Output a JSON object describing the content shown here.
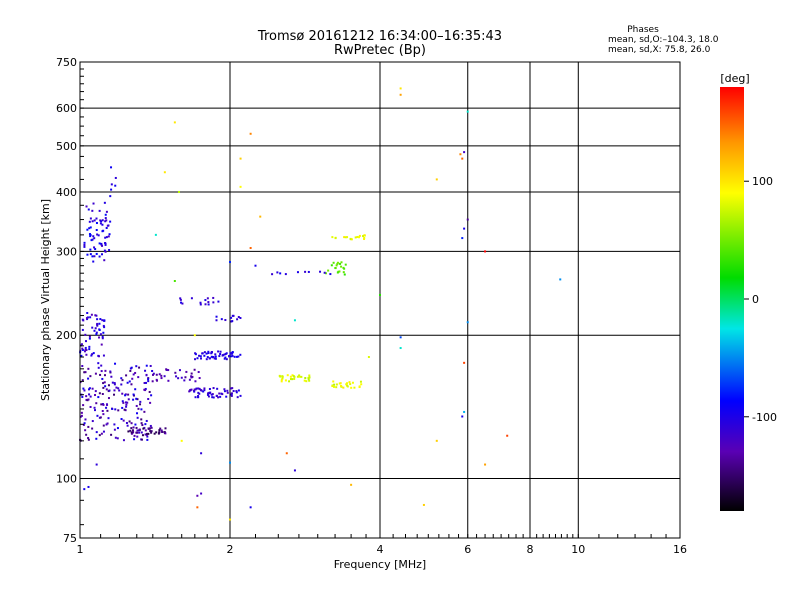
{
  "chart_data": {
    "type": "scatter",
    "title": "Tromsø 20161212 16:34:00–16:35:43",
    "subtitle": "RwPretec (Bp)",
    "xlabel": "Frequency [MHz]",
    "ylabel": "Stationary phase Virtual Height [km]",
    "x_scale": "log",
    "y_scale": "log",
    "xlim": [
      1,
      16
    ],
    "ylim": [
      75,
      750
    ],
    "x_ticks": [
      1,
      2,
      4,
      6,
      8,
      10,
      16
    ],
    "x_tick_labels": [
      "1",
      "2",
      "4",
      "6",
      "8",
      "10",
      "16"
    ],
    "y_ticks": [
      75,
      100,
      200,
      300,
      400,
      500,
      600,
      750
    ],
    "y_tick_labels": [
      "75",
      "100",
      "200",
      "300",
      "400",
      "500",
      "600",
      "750"
    ],
    "grid": true,
    "stats": {
      "header": "Phases",
      "line_o": "mean, sd,O:–104.3, 18.0",
      "line_x": "mean, sd,X:  75.8, 26.0"
    },
    "colorbar": {
      "label": "[deg]",
      "range": [
        -180,
        180
      ],
      "ticks": [
        100,
        0,
        -100
      ],
      "tick_labels": [
        "100",
        "0",
        "-100"
      ]
    },
    "clusters": [
      {
        "f": [
          1.02,
          1.15
        ],
        "h": [
          285,
          380
        ],
        "phase": [
          -125,
          -85
        ],
        "n": 70
      },
      {
        "f": [
          1.0,
          1.12
        ],
        "h": [
          180,
          225
        ],
        "phase": [
          -130,
          -90
        ],
        "n": 60
      },
      {
        "f": [
          1.0,
          1.4
        ],
        "h": [
          120,
          175
        ],
        "phase": [
          -150,
          -95
        ],
        "n": 200
      },
      {
        "f": [
          1.25,
          1.5
        ],
        "h": [
          123,
          128
        ],
        "phase": [
          -160,
          -130
        ],
        "n": 40
      },
      {
        "f": [
          1.4,
          1.75
        ],
        "h": [
          160,
          170
        ],
        "phase": [
          -140,
          -115
        ],
        "n": 30
      },
      {
        "f": [
          1.65,
          2.1
        ],
        "h": [
          148,
          155
        ],
        "phase": [
          -125,
          -100
        ],
        "n": 60
      },
      {
        "f": [
          1.7,
          2.1
        ],
        "h": [
          178,
          185
        ],
        "phase": [
          -115,
          -95
        ],
        "n": 55
      },
      {
        "f": [
          1.55,
          1.9
        ],
        "h": [
          232,
          240
        ],
        "phase": [
          -120,
          -100
        ],
        "n": 15
      },
      {
        "f": [
          1.85,
          2.1
        ],
        "h": [
          213,
          220
        ],
        "phase": [
          -115,
          -100
        ],
        "n": 12
      },
      {
        "f": [
          2.5,
          2.9
        ],
        "h": [
          160,
          165
        ],
        "phase": [
          70,
          95
        ],
        "n": 30
      },
      {
        "f": [
          3.2,
          3.7
        ],
        "h": [
          155,
          160
        ],
        "phase": [
          70,
          100
        ],
        "n": 25
      },
      {
        "f": [
          3.1,
          3.45
        ],
        "h": [
          268,
          285
        ],
        "phase": [
          30,
          55
        ],
        "n": 20
      },
      {
        "f": [
          3.2,
          3.8
        ],
        "h": [
          318,
          325
        ],
        "phase": [
          75,
          100
        ],
        "n": 18
      },
      {
        "f": [
          2.4,
          3.2
        ],
        "h": [
          268,
          272
        ],
        "phase": [
          -115,
          -95
        ],
        "n": 10
      },
      {
        "f": [
          1.15,
          1.2
        ],
        "h": [
          400,
          460
        ],
        "phase": [
          -110,
          -95
        ],
        "n": 4
      }
    ],
    "points": [
      {
        "x": 1.55,
        "y": 560,
        "phase": 100
      },
      {
        "x": 1.58,
        "y": 400,
        "phase": 70
      },
      {
        "x": 1.48,
        "y": 440,
        "phase": 100
      },
      {
        "x": 1.42,
        "y": 325,
        "phase": -20
      },
      {
        "x": 2.2,
        "y": 530,
        "phase": 140
      },
      {
        "x": 2.1,
        "y": 470,
        "phase": 110
      },
      {
        "x": 2.1,
        "y": 410,
        "phase": 90
      },
      {
        "x": 2.3,
        "y": 355,
        "phase": 120
      },
      {
        "x": 2.2,
        "y": 305,
        "phase": 150
      },
      {
        "x": 2.25,
        "y": 280,
        "phase": -100
      },
      {
        "x": 2.0,
        "y": 285,
        "phase": -80
      },
      {
        "x": 1.55,
        "y": 260,
        "phase": 40
      },
      {
        "x": 2.7,
        "y": 215,
        "phase": -20
      },
      {
        "x": 2.6,
        "y": 113,
        "phase": 150
      },
      {
        "x": 2.7,
        "y": 104,
        "phase": -110
      },
      {
        "x": 2.0,
        "y": 108,
        "phase": -50
      },
      {
        "x": 1.75,
        "y": 113,
        "phase": -110
      },
      {
        "x": 1.72,
        "y": 92,
        "phase": -130
      },
      {
        "x": 1.75,
        "y": 93,
        "phase": -120
      },
      {
        "x": 1.72,
        "y": 87,
        "phase": 150
      },
      {
        "x": 2.0,
        "y": 82,
        "phase": 100
      },
      {
        "x": 2.2,
        "y": 87,
        "phase": -100
      },
      {
        "x": 1.02,
        "y": 95,
        "phase": -100
      },
      {
        "x": 1.04,
        "y": 96,
        "phase": -100
      },
      {
        "x": 1.08,
        "y": 107,
        "phase": -110
      },
      {
        "x": 1.6,
        "y": 120,
        "phase": 90
      },
      {
        "x": 1.7,
        "y": 200,
        "phase": 90
      },
      {
        "x": 3.5,
        "y": 97,
        "phase": 120
      },
      {
        "x": 4.4,
        "y": 660,
        "phase": 100
      },
      {
        "x": 4.4,
        "y": 640,
        "phase": 130
      },
      {
        "x": 4.4,
        "y": 198,
        "phase": -70
      },
      {
        "x": 4.4,
        "y": 188,
        "phase": -20
      },
      {
        "x": 3.8,
        "y": 180,
        "phase": 80
      },
      {
        "x": 4.0,
        "y": 243,
        "phase": 30
      },
      {
        "x": 4.9,
        "y": 88,
        "phase": 110
      },
      {
        "x": 5.2,
        "y": 120,
        "phase": 110
      },
      {
        "x": 5.2,
        "y": 425,
        "phase": 110
      },
      {
        "x": 5.8,
        "y": 480,
        "phase": 140
      },
      {
        "x": 5.85,
        "y": 470,
        "phase": 150
      },
      {
        "x": 5.9,
        "y": 485,
        "phase": -120
      },
      {
        "x": 6.0,
        "y": 590,
        "phase": -20
      },
      {
        "x": 6.0,
        "y": 350,
        "phase": -140
      },
      {
        "x": 5.9,
        "y": 335,
        "phase": -100
      },
      {
        "x": 5.85,
        "y": 320,
        "phase": -80
      },
      {
        "x": 6.0,
        "y": 213,
        "phase": -50
      },
      {
        "x": 5.9,
        "y": 175,
        "phase": 160
      },
      {
        "x": 5.85,
        "y": 135,
        "phase": -100
      },
      {
        "x": 5.9,
        "y": 138,
        "phase": -40
      },
      {
        "x": 6.5,
        "y": 300,
        "phase": 180
      },
      {
        "x": 6.5,
        "y": 107,
        "phase": 130
      },
      {
        "x": 7.2,
        "y": 123,
        "phase": 160
      },
      {
        "x": 9.2,
        "y": 262,
        "phase": -50
      },
      {
        "x": 1.15,
        "y": 392,
        "phase": -100
      },
      {
        "x": 1.18,
        "y": 428,
        "phase": -110
      }
    ]
  }
}
